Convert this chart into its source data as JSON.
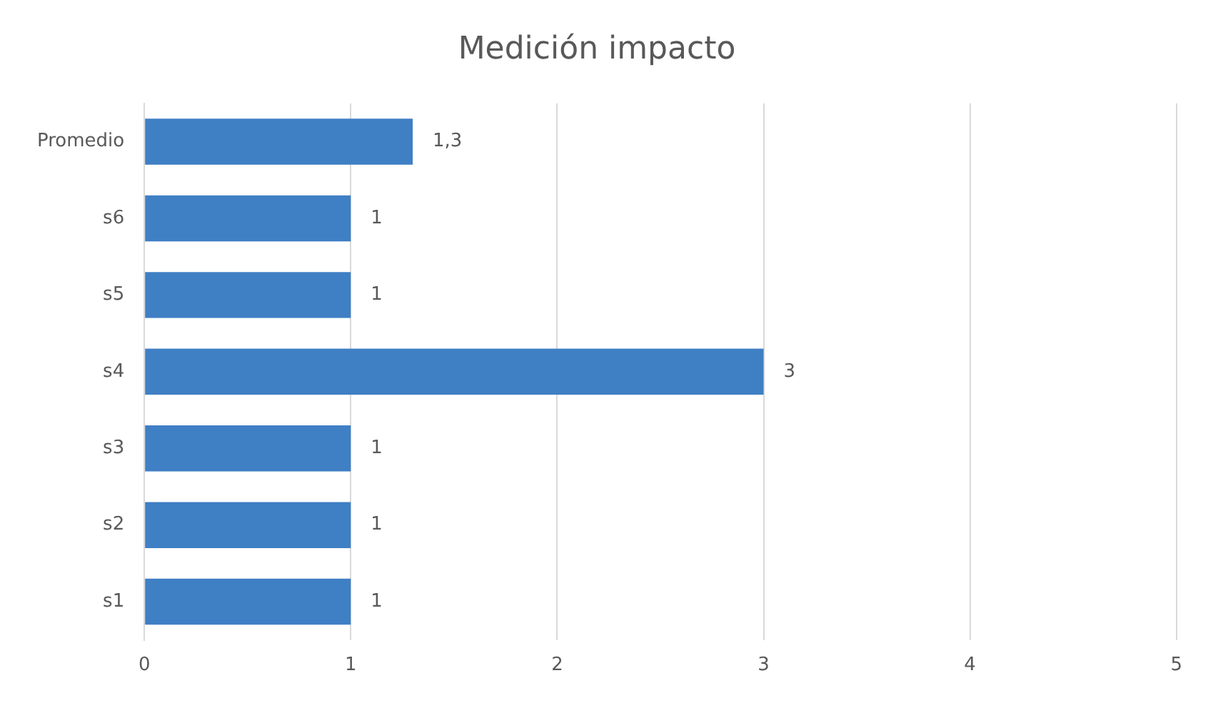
{
  "chart_data": {
    "type": "bar",
    "orientation": "horizontal",
    "title": "Medición impacto",
    "categories": [
      "Promedio",
      "s6",
      "s5",
      "s4",
      "s3",
      "s2",
      "s1"
    ],
    "values": [
      1.3,
      1,
      1,
      3,
      1,
      1,
      1
    ],
    "value_labels": [
      "1,3",
      "1",
      "1",
      "3",
      "1",
      "1",
      "1"
    ],
    "color": "#3f7fc4",
    "xlim": [
      0,
      5
    ],
    "xticks": [
      0,
      1,
      2,
      3,
      4,
      5
    ],
    "grid": "x",
    "legend": false
  }
}
